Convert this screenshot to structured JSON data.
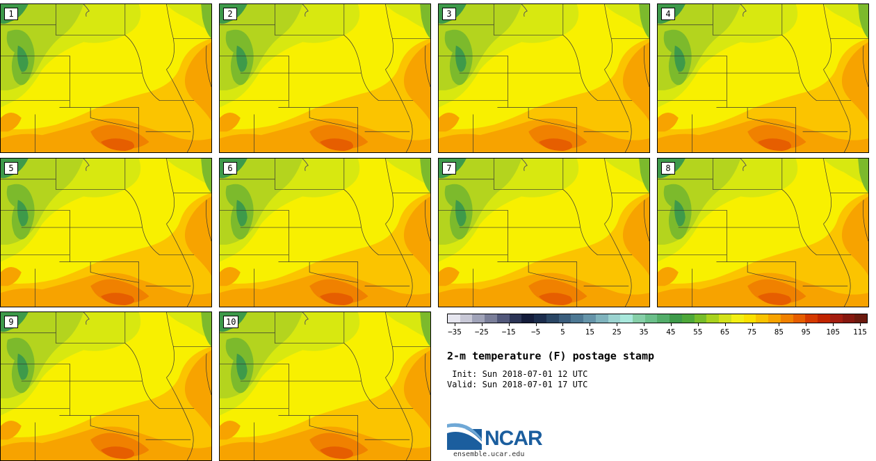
{
  "panels": [
    {
      "label": "1"
    },
    {
      "label": "2"
    },
    {
      "label": "3"
    },
    {
      "label": "4"
    },
    {
      "label": "5"
    },
    {
      "label": "6"
    },
    {
      "label": "7"
    },
    {
      "label": "8"
    },
    {
      "label": "9"
    },
    {
      "label": "10"
    }
  ],
  "colorbar": {
    "colors": [
      "#e6e6ef",
      "#c8c8d6",
      "#a0a3b8",
      "#7a7e99",
      "#52587a",
      "#2c3556",
      "#141c3a",
      "#1c2d4d",
      "#2a4664",
      "#3b5e7d",
      "#4d7893",
      "#6594a9",
      "#7fb3bd",
      "#9bd3d0",
      "#a9e8dc",
      "#86cfa8",
      "#6bbf8a",
      "#53ad6a",
      "#3e9a4a",
      "#4ea83a",
      "#77bd2a",
      "#a8d21e",
      "#d3e21a",
      "#f3ef14",
      "#fbe100",
      "#f9c300",
      "#f7a300",
      "#f08100",
      "#e65e00",
      "#d53a00",
      "#c02400",
      "#a41d10",
      "#86180f",
      "#6b1a0e"
    ],
    "tick_labels": [
      "−35",
      "−25",
      "−15",
      "−5",
      "5",
      "15",
      "25",
      "35",
      "45",
      "55",
      "65",
      "75",
      "85",
      "95",
      "105",
      "115"
    ]
  },
  "title": "2-m temperature (F) postage stamp",
  "init_text": " Init: Sun 2018-07-01 12 UTC",
  "valid_text": "Valid: Sun 2018-07-01 17 UTC",
  "logo": {
    "text": "NCAR",
    "url": "ensemble.ucar.edu"
  },
  "map_colors": {
    "land_yellow": "#f8f000",
    "yellow_green": "#d8e810",
    "light_green": "#b4d41e",
    "mid_green": "#7cba2c",
    "dark_green": "#3e9a4a",
    "orange_light": "#fbc400",
    "orange": "#f7a300",
    "orange_dark": "#f08100",
    "red_orange": "#e65e00",
    "boundary": "#333333"
  }
}
